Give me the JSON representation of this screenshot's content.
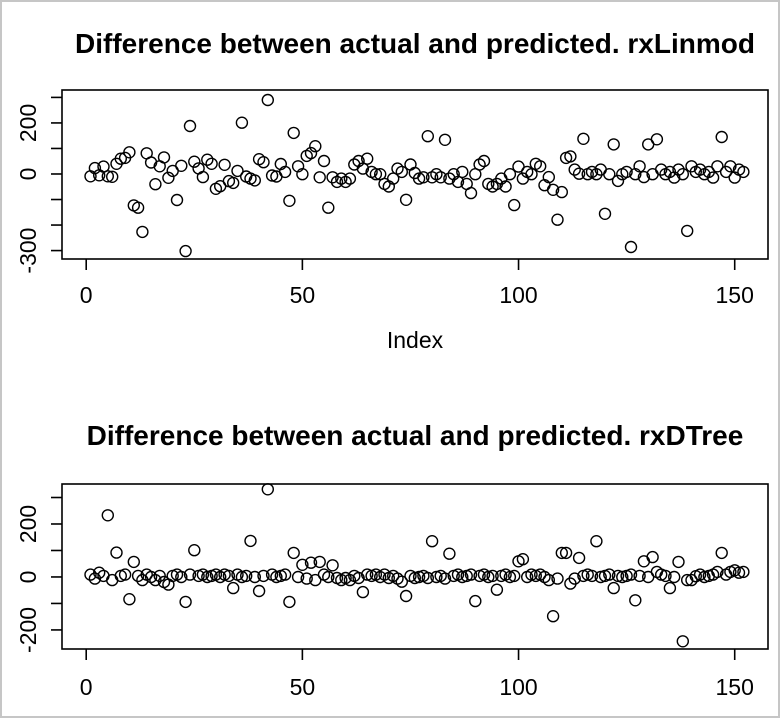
{
  "window": {
    "background": "#ffffff",
    "frame_border_color": "#c6c6c6",
    "plot_line_color": "#000000",
    "marker": "open-circle"
  },
  "chart_data": [
    {
      "type": "scatter",
      "title": "Difference between actual and predicted. rxLinmod",
      "xlabel": "Index",
      "ylabel": "",
      "x_description": "row index 1..152",
      "n_points": 152,
      "xlim": [
        -5.6,
        157.7
      ],
      "ylim": [
        -333,
        329
      ],
      "xticks": [
        0,
        50,
        100,
        150
      ],
      "xtick_labels": [
        "0",
        "50",
        "100",
        "150"
      ],
      "yticks": [
        300,
        200,
        100,
        0,
        -100,
        -200,
        -300
      ],
      "ytick_labels": [
        "",
        "200",
        "",
        "0",
        "",
        "",
        "-300"
      ],
      "grid": false,
      "legend": "none",
      "y": [
        -9,
        23,
        -5,
        29,
        -9,
        -11,
        40,
        60,
        63,
        85,
        -123,
        -132,
        -227,
        81,
        45,
        -40,
        30,
        65,
        -15,
        12,
        -102,
        32,
        -302,
        188,
        48,
        22,
        -12,
        56,
        40,
        -58,
        -48,
        36,
        -28,
        -35,
        12,
        201,
        -10,
        -18,
        -25,
        58,
        46,
        290,
        -6,
        -10,
        39,
        8,
        -105,
        161,
        30,
        -1,
        71,
        82,
        109,
        -13,
        51,
        -132,
        -13,
        -31,
        -18,
        -31,
        -18,
        37,
        51,
        21,
        60,
        8,
        -1,
        -1,
        -39,
        -49,
        -18,
        21,
        8,
        -101,
        37,
        4,
        -18,
        -13,
        148,
        -13,
        -1,
        -13,
        134,
        -18,
        -1,
        -31,
        8,
        -39,
        -75,
        -1,
        37,
        51,
        -39,
        -49,
        -39,
        -18,
        -49,
        -1,
        -122,
        29,
        -18,
        8,
        -1,
        40,
        30,
        -44,
        -12,
        -62,
        -179,
        -71,
        63,
        69,
        17,
        1,
        138,
        -1,
        8,
        -1,
        17,
        -156,
        -1,
        116,
        -27,
        -1,
        8,
        -286,
        -1,
        30,
        -12,
        116,
        -1,
        136,
        17,
        -1,
        8,
        -14,
        17,
        -1,
        -223,
        30,
        8,
        17,
        -1,
        8,
        -14,
        30,
        145,
        8,
        30,
        -14,
        17,
        8
      ]
    },
    {
      "type": "scatter",
      "title": "Difference between actual and predicted. rxDTree",
      "xlabel": "",
      "ylabel": "",
      "x_description": "row index 1..152",
      "n_points": 152,
      "xlim": [
        -5.6,
        157.7
      ],
      "ylim": [
        -272,
        351
      ],
      "xticks": [
        0,
        50,
        100,
        150
      ],
      "xtick_labels": [
        "0",
        "50",
        "100",
        "150"
      ],
      "yticks": [
        300,
        200,
        100,
        0,
        -100,
        -200
      ],
      "ytick_labels": [
        "",
        "200",
        "",
        "0",
        "",
        "-200"
      ],
      "grid": false,
      "legend": "none",
      "y": [
        9,
        -6,
        16,
        4,
        233,
        -12,
        92,
        4,
        9,
        -84,
        57,
        4,
        -12,
        9,
        0,
        -12,
        4,
        -19,
        -29,
        4,
        9,
        0,
        -94,
        9,
        101,
        4,
        9,
        0,
        4,
        9,
        0,
        9,
        4,
        -42,
        9,
        0,
        4,
        136,
        0,
        -53,
        4,
        331,
        9,
        0,
        4,
        9,
        -94,
        91,
        0,
        46,
        -6,
        54,
        -12,
        57,
        9,
        0,
        44,
        -4,
        -12,
        -4,
        -12,
        4,
        -4,
        -57,
        9,
        4,
        9,
        0,
        9,
        -4,
        4,
        -6,
        -18,
        -72,
        4,
        -4,
        0,
        4,
        -4,
        135,
        0,
        4,
        -6,
        88,
        4,
        9,
        0,
        4,
        9,
        -91,
        4,
        9,
        0,
        4,
        -48,
        4,
        9,
        0,
        4,
        59,
        67,
        0,
        9,
        4,
        9,
        0,
        -12,
        -148,
        -6,
        91,
        91,
        -25,
        -6,
        72,
        4,
        9,
        4,
        135,
        0,
        4,
        9,
        -42,
        4,
        0,
        4,
        9,
        -88,
        4,
        59,
        0,
        75,
        19,
        9,
        4,
        -42,
        0,
        57,
        -243,
        -12,
        -12,
        3,
        9,
        0,
        4,
        9,
        19,
        91,
        9,
        19,
        25,
        16,
        19
      ]
    }
  ]
}
